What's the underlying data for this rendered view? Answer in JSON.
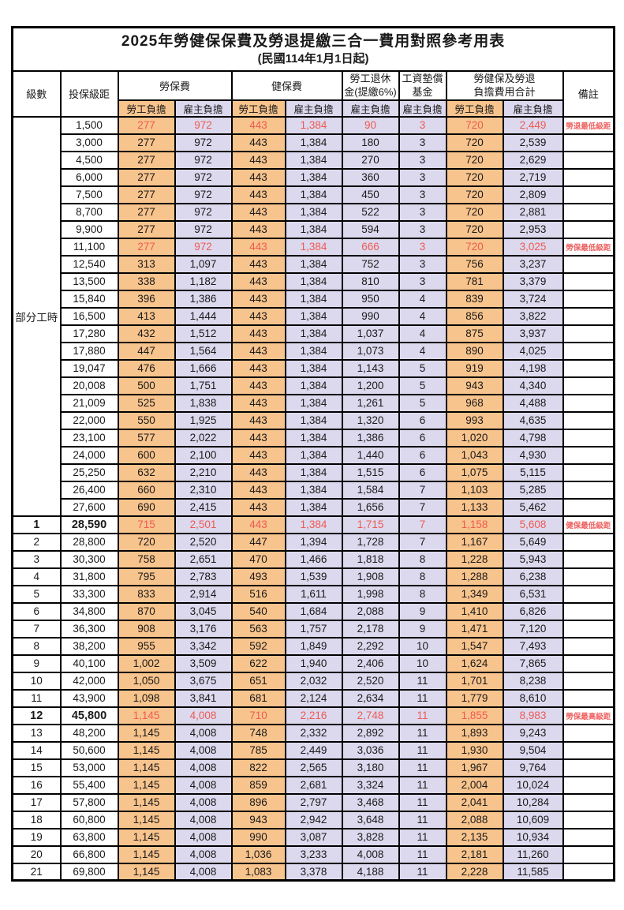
{
  "title": "2025年勞健保保費及勞退提繳三合一費用對照參考用表",
  "subtitle": "(民國114年1月1日起)",
  "columns": {
    "level": "級數",
    "bracket": "投保級距",
    "labor_insurance": "勞保費",
    "health_insurance": "健保費",
    "pension_line1": "勞工退休",
    "pension_line2": "金(提繳6%)",
    "wage_fund_line1": "工資墊償",
    "wage_fund_line2": "基金",
    "total_line1": "勞健保及勞退",
    "total_line2": "負擔費用合計",
    "remarks": "備註",
    "worker_share": "勞工負擔",
    "employer_share": "雇主負擔"
  },
  "part_time": {
    "label": "部分工時",
    "row_count": 23
  },
  "colors": {
    "worker_bg": "#F8C48D",
    "employer_bg": "#DCD9EE",
    "highlight_red": "#EE5A52",
    "remark_red": "#EF6262",
    "border": "#000000"
  },
  "rows": [
    {
      "level": "",
      "bracket": "1,500",
      "values": [
        "277",
        "972",
        "443",
        "1,384",
        "90",
        "3",
        "720",
        "2,449"
      ],
      "remark": "勞退最低級距",
      "highlight": true,
      "bold": false
    },
    {
      "level": "",
      "bracket": "3,000",
      "values": [
        "277",
        "972",
        "443",
        "1,384",
        "180",
        "3",
        "720",
        "2,539"
      ],
      "remark": "",
      "highlight": false,
      "bold": false
    },
    {
      "level": "",
      "bracket": "4,500",
      "values": [
        "277",
        "972",
        "443",
        "1,384",
        "270",
        "3",
        "720",
        "2,629"
      ],
      "remark": "",
      "highlight": false,
      "bold": false
    },
    {
      "level": "",
      "bracket": "6,000",
      "values": [
        "277",
        "972",
        "443",
        "1,384",
        "360",
        "3",
        "720",
        "2,719"
      ],
      "remark": "",
      "highlight": false,
      "bold": false
    },
    {
      "level": "",
      "bracket": "7,500",
      "values": [
        "277",
        "972",
        "443",
        "1,384",
        "450",
        "3",
        "720",
        "2,809"
      ],
      "remark": "",
      "highlight": false,
      "bold": false
    },
    {
      "level": "",
      "bracket": "8,700",
      "values": [
        "277",
        "972",
        "443",
        "1,384",
        "522",
        "3",
        "720",
        "2,881"
      ],
      "remark": "",
      "highlight": false,
      "bold": false
    },
    {
      "level": "",
      "bracket": "9,900",
      "values": [
        "277",
        "972",
        "443",
        "1,384",
        "594",
        "3",
        "720",
        "2,953"
      ],
      "remark": "",
      "highlight": false,
      "bold": false
    },
    {
      "level": "",
      "bracket": "11,100",
      "values": [
        "277",
        "972",
        "443",
        "1,384",
        "666",
        "3",
        "720",
        "3,025"
      ],
      "remark": "勞保最低級距",
      "highlight": true,
      "bold": false
    },
    {
      "level": "",
      "bracket": "12,540",
      "values": [
        "313",
        "1,097",
        "443",
        "1,384",
        "752",
        "3",
        "756",
        "3,237"
      ],
      "remark": "",
      "highlight": false,
      "bold": false
    },
    {
      "level": "",
      "bracket": "13,500",
      "values": [
        "338",
        "1,182",
        "443",
        "1,384",
        "810",
        "3",
        "781",
        "3,379"
      ],
      "remark": "",
      "highlight": false,
      "bold": false
    },
    {
      "level": "",
      "bracket": "15,840",
      "values": [
        "396",
        "1,386",
        "443",
        "1,384",
        "950",
        "4",
        "839",
        "3,724"
      ],
      "remark": "",
      "highlight": false,
      "bold": false
    },
    {
      "level": "",
      "bracket": "16,500",
      "values": [
        "413",
        "1,444",
        "443",
        "1,384",
        "990",
        "4",
        "856",
        "3,822"
      ],
      "remark": "",
      "highlight": false,
      "bold": false
    },
    {
      "level": "",
      "bracket": "17,280",
      "values": [
        "432",
        "1,512",
        "443",
        "1,384",
        "1,037",
        "4",
        "875",
        "3,937"
      ],
      "remark": "",
      "highlight": false,
      "bold": false
    },
    {
      "level": "",
      "bracket": "17,880",
      "values": [
        "447",
        "1,564",
        "443",
        "1,384",
        "1,073",
        "4",
        "890",
        "4,025"
      ],
      "remark": "",
      "highlight": false,
      "bold": false
    },
    {
      "level": "",
      "bracket": "19,047",
      "values": [
        "476",
        "1,666",
        "443",
        "1,384",
        "1,143",
        "5",
        "919",
        "4,198"
      ],
      "remark": "",
      "highlight": false,
      "bold": false
    },
    {
      "level": "",
      "bracket": "20,008",
      "values": [
        "500",
        "1,751",
        "443",
        "1,384",
        "1,200",
        "5",
        "943",
        "4,340"
      ],
      "remark": "",
      "highlight": false,
      "bold": false
    },
    {
      "level": "",
      "bracket": "21,009",
      "values": [
        "525",
        "1,838",
        "443",
        "1,384",
        "1,261",
        "5",
        "968",
        "4,488"
      ],
      "remark": "",
      "highlight": false,
      "bold": false
    },
    {
      "level": "",
      "bracket": "22,000",
      "values": [
        "550",
        "1,925",
        "443",
        "1,384",
        "1,320",
        "6",
        "993",
        "4,635"
      ],
      "remark": "",
      "highlight": false,
      "bold": false
    },
    {
      "level": "",
      "bracket": "23,100",
      "values": [
        "577",
        "2,022",
        "443",
        "1,384",
        "1,386",
        "6",
        "1,020",
        "4,798"
      ],
      "remark": "",
      "highlight": false,
      "bold": false
    },
    {
      "level": "",
      "bracket": "24,000",
      "values": [
        "600",
        "2,100",
        "443",
        "1,384",
        "1,440",
        "6",
        "1,043",
        "4,930"
      ],
      "remark": "",
      "highlight": false,
      "bold": false
    },
    {
      "level": "",
      "bracket": "25,250",
      "values": [
        "632",
        "2,210",
        "443",
        "1,384",
        "1,515",
        "6",
        "1,075",
        "5,115"
      ],
      "remark": "",
      "highlight": false,
      "bold": false
    },
    {
      "level": "",
      "bracket": "26,400",
      "values": [
        "660",
        "2,310",
        "443",
        "1,384",
        "1,584",
        "7",
        "1,103",
        "5,285"
      ],
      "remark": "",
      "highlight": false,
      "bold": false
    },
    {
      "level": "",
      "bracket": "27,600",
      "values": [
        "690",
        "2,415",
        "443",
        "1,384",
        "1,656",
        "7",
        "1,133",
        "5,462"
      ],
      "remark": "",
      "highlight": false,
      "bold": false
    },
    {
      "level": "1",
      "bracket": "28,590",
      "values": [
        "715",
        "2,501",
        "443",
        "1,384",
        "1,715",
        "7",
        "1,158",
        "5,608"
      ],
      "remark": "健保最低級距",
      "highlight": true,
      "bold": true
    },
    {
      "level": "2",
      "bracket": "28,800",
      "values": [
        "720",
        "2,520",
        "447",
        "1,394",
        "1,728",
        "7",
        "1,167",
        "5,649"
      ],
      "remark": "",
      "highlight": false,
      "bold": false
    },
    {
      "level": "3",
      "bracket": "30,300",
      "values": [
        "758",
        "2,651",
        "470",
        "1,466",
        "1,818",
        "8",
        "1,228",
        "5,943"
      ],
      "remark": "",
      "highlight": false,
      "bold": false
    },
    {
      "level": "4",
      "bracket": "31,800",
      "values": [
        "795",
        "2,783",
        "493",
        "1,539",
        "1,908",
        "8",
        "1,288",
        "6,238"
      ],
      "remark": "",
      "highlight": false,
      "bold": false
    },
    {
      "level": "5",
      "bracket": "33,300",
      "values": [
        "833",
        "2,914",
        "516",
        "1,611",
        "1,998",
        "8",
        "1,349",
        "6,531"
      ],
      "remark": "",
      "highlight": false,
      "bold": false
    },
    {
      "level": "6",
      "bracket": "34,800",
      "values": [
        "870",
        "3,045",
        "540",
        "1,684",
        "2,088",
        "9",
        "1,410",
        "6,826"
      ],
      "remark": "",
      "highlight": false,
      "bold": false
    },
    {
      "level": "7",
      "bracket": "36,300",
      "values": [
        "908",
        "3,176",
        "563",
        "1,757",
        "2,178",
        "9",
        "1,471",
        "7,120"
      ],
      "remark": "",
      "highlight": false,
      "bold": false
    },
    {
      "level": "8",
      "bracket": "38,200",
      "values": [
        "955",
        "3,342",
        "592",
        "1,849",
        "2,292",
        "10",
        "1,547",
        "7,493"
      ],
      "remark": "",
      "highlight": false,
      "bold": false
    },
    {
      "level": "9",
      "bracket": "40,100",
      "values": [
        "1,002",
        "3,509",
        "622",
        "1,940",
        "2,406",
        "10",
        "1,624",
        "7,865"
      ],
      "remark": "",
      "highlight": false,
      "bold": false
    },
    {
      "level": "10",
      "bracket": "42,000",
      "values": [
        "1,050",
        "3,675",
        "651",
        "2,032",
        "2,520",
        "11",
        "1,701",
        "8,238"
      ],
      "remark": "",
      "highlight": false,
      "bold": false
    },
    {
      "level": "11",
      "bracket": "43,900",
      "values": [
        "1,098",
        "3,841",
        "681",
        "2,124",
        "2,634",
        "11",
        "1,779",
        "8,610"
      ],
      "remark": "",
      "highlight": false,
      "bold": false
    },
    {
      "level": "12",
      "bracket": "45,800",
      "values": [
        "1,145",
        "4,008",
        "710",
        "2,216",
        "2,748",
        "11",
        "1,855",
        "8,983"
      ],
      "remark": "勞保最高級距",
      "highlight": true,
      "bold": true
    },
    {
      "level": "13",
      "bracket": "48,200",
      "values": [
        "1,145",
        "4,008",
        "748",
        "2,332",
        "2,892",
        "11",
        "1,893",
        "9,243"
      ],
      "remark": "",
      "highlight": false,
      "bold": false
    },
    {
      "level": "14",
      "bracket": "50,600",
      "values": [
        "1,145",
        "4,008",
        "785",
        "2,449",
        "3,036",
        "11",
        "1,930",
        "9,504"
      ],
      "remark": "",
      "highlight": false,
      "bold": false
    },
    {
      "level": "15",
      "bracket": "53,000",
      "values": [
        "1,145",
        "4,008",
        "822",
        "2,565",
        "3,180",
        "11",
        "1,967",
        "9,764"
      ],
      "remark": "",
      "highlight": false,
      "bold": false
    },
    {
      "level": "16",
      "bracket": "55,400",
      "values": [
        "1,145",
        "4,008",
        "859",
        "2,681",
        "3,324",
        "11",
        "2,004",
        "10,024"
      ],
      "remark": "",
      "highlight": false,
      "bold": false
    },
    {
      "level": "17",
      "bracket": "57,800",
      "values": [
        "1,145",
        "4,008",
        "896",
        "2,797",
        "3,468",
        "11",
        "2,041",
        "10,284"
      ],
      "remark": "",
      "highlight": false,
      "bold": false
    },
    {
      "level": "18",
      "bracket": "60,800",
      "values": [
        "1,145",
        "4,008",
        "943",
        "2,942",
        "3,648",
        "11",
        "2,088",
        "10,609"
      ],
      "remark": "",
      "highlight": false,
      "bold": false
    },
    {
      "level": "19",
      "bracket": "63,800",
      "values": [
        "1,145",
        "4,008",
        "990",
        "3,087",
        "3,828",
        "11",
        "2,135",
        "10,934"
      ],
      "remark": "",
      "highlight": false,
      "bold": false
    },
    {
      "level": "20",
      "bracket": "66,800",
      "values": [
        "1,145",
        "4,008",
        "1,036",
        "3,233",
        "4,008",
        "11",
        "2,181",
        "11,260"
      ],
      "remark": "",
      "highlight": false,
      "bold": false
    },
    {
      "level": "21",
      "bracket": "69,800",
      "values": [
        "1,145",
        "4,008",
        "1,083",
        "3,378",
        "4,188",
        "11",
        "2,228",
        "11,585"
      ],
      "remark": "",
      "highlight": false,
      "bold": false
    }
  ]
}
